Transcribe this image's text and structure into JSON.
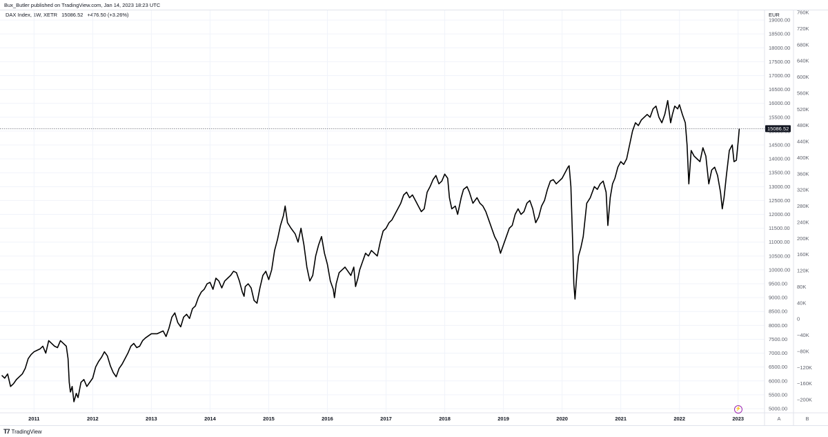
{
  "header": {
    "published": "Bux_Butler published on TradingView.com, Jan 14, 2023 18:23 UTC"
  },
  "legend": {
    "symbol": "DAX Index, 1W, XETR",
    "last": "15086.52",
    "change": "+476.50 (+3.26%)"
  },
  "footer": {
    "brand": "TradingView",
    "logo_icon": "tradingview-logo-icon",
    "scale_a": "A",
    "scale_b": "B",
    "alert_icon": "lightning-alert-icon"
  },
  "colors": {
    "line": "#000000",
    "grid": "#f0f3fa",
    "price_label_bg": "#131722",
    "price_label_text": "#ffffff",
    "alert": "#9c27b0",
    "axis_text": "#5d606b"
  },
  "chart_data": {
    "type": "line",
    "title": "",
    "currency": "EUR",
    "xlabel": "",
    "ylabel": "",
    "x_tick_labels": [
      "2011",
      "2012",
      "2013",
      "2014",
      "2015",
      "2016",
      "2017",
      "2018",
      "2019",
      "2020",
      "2021",
      "2022",
      "2023"
    ],
    "y_left_ticks": [
      "19000.00",
      "18500.00",
      "18000.00",
      "17500.00",
      "17000.00",
      "16500.00",
      "16000.00",
      "15500.00",
      "15000.00",
      "14500.00",
      "14000.00",
      "13500.00",
      "13000.00",
      "12500.00",
      "12000.00",
      "11500.00",
      "11000.00",
      "10500.00",
      "10000.00",
      "9500.00",
      "9000.00",
      "8500.00",
      "8000.00",
      "7500.00",
      "7000.00",
      "6500.00",
      "6000.00",
      "5500.00",
      "5000.00"
    ],
    "y_right_ticks": [
      "760K",
      "720K",
      "680K",
      "640K",
      "600K",
      "560K",
      "520K",
      "480K",
      "440K",
      "400K",
      "360K",
      "320K",
      "280K",
      "240K",
      "200K",
      "160K",
      "120K",
      "80K",
      "40K",
      "0",
      "−40K",
      "−80K",
      "−120K",
      "−160K",
      "−200K"
    ],
    "ylim": [
      4850,
      19350
    ],
    "xlim": [
      2010.42,
      2023.45
    ],
    "grid": true,
    "last_value": 15086.52,
    "last_value_label": "15086.52",
    "series": [
      {
        "values": [
          [
            2010.45,
            6200
          ],
          [
            2010.5,
            6100
          ],
          [
            2010.55,
            6250
          ],
          [
            2010.6,
            5800
          ],
          [
            2010.65,
            5900
          ],
          [
            2010.7,
            6050
          ],
          [
            2010.75,
            6150
          ],
          [
            2010.8,
            6250
          ],
          [
            2010.85,
            6450
          ],
          [
            2010.9,
            6800
          ],
          [
            2010.95,
            6950
          ],
          [
            2011.0,
            7050
          ],
          [
            2011.05,
            7100
          ],
          [
            2011.1,
            7150
          ],
          [
            2011.15,
            7250
          ],
          [
            2011.2,
            7000
          ],
          [
            2011.25,
            7450
          ],
          [
            2011.3,
            7350
          ],
          [
            2011.35,
            7250
          ],
          [
            2011.4,
            7200
          ],
          [
            2011.45,
            7450
          ],
          [
            2011.5,
            7350
          ],
          [
            2011.55,
            7250
          ],
          [
            2011.58,
            6800
          ],
          [
            2011.6,
            5950
          ],
          [
            2011.62,
            5600
          ],
          [
            2011.65,
            5800
          ],
          [
            2011.68,
            5250
          ],
          [
            2011.72,
            5550
          ],
          [
            2011.75,
            5400
          ],
          [
            2011.8,
            5950
          ],
          [
            2011.85,
            6050
          ],
          [
            2011.9,
            5800
          ],
          [
            2011.95,
            5950
          ],
          [
            2012.0,
            6100
          ],
          [
            2012.05,
            6500
          ],
          [
            2012.1,
            6700
          ],
          [
            2012.15,
            6850
          ],
          [
            2012.2,
            7050
          ],
          [
            2012.25,
            6900
          ],
          [
            2012.3,
            6550
          ],
          [
            2012.35,
            6300
          ],
          [
            2012.4,
            6150
          ],
          [
            2012.45,
            6450
          ],
          [
            2012.5,
            6600
          ],
          [
            2012.55,
            6800
          ],
          [
            2012.6,
            7000
          ],
          [
            2012.65,
            7250
          ],
          [
            2012.7,
            7350
          ],
          [
            2012.75,
            7200
          ],
          [
            2012.8,
            7250
          ],
          [
            2012.85,
            7450
          ],
          [
            2012.9,
            7550
          ],
          [
            2013.0,
            7700
          ],
          [
            2013.1,
            7700
          ],
          [
            2013.2,
            7800
          ],
          [
            2013.25,
            7600
          ],
          [
            2013.3,
            7900
          ],
          [
            2013.35,
            8300
          ],
          [
            2013.4,
            8450
          ],
          [
            2013.45,
            8100
          ],
          [
            2013.5,
            7950
          ],
          [
            2013.55,
            8300
          ],
          [
            2013.6,
            8400
          ],
          [
            2013.65,
            8250
          ],
          [
            2013.7,
            8600
          ],
          [
            2013.75,
            8700
          ],
          [
            2013.8,
            9000
          ],
          [
            2013.85,
            9200
          ],
          [
            2013.9,
            9300
          ],
          [
            2013.95,
            9500
          ],
          [
            2014.0,
            9550
          ],
          [
            2014.05,
            9300
          ],
          [
            2014.1,
            9700
          ],
          [
            2014.15,
            9600
          ],
          [
            2014.2,
            9350
          ],
          [
            2014.25,
            9600
          ],
          [
            2014.3,
            9700
          ],
          [
            2014.35,
            9800
          ],
          [
            2014.4,
            9950
          ],
          [
            2014.45,
            9900
          ],
          [
            2014.5,
            9600
          ],
          [
            2014.55,
            9200
          ],
          [
            2014.58,
            9050
          ],
          [
            2014.6,
            9400
          ],
          [
            2014.65,
            9500
          ],
          [
            2014.7,
            9350
          ],
          [
            2014.75,
            8900
          ],
          [
            2014.8,
            8800
          ],
          [
            2014.85,
            9350
          ],
          [
            2014.9,
            9800
          ],
          [
            2014.95,
            9950
          ],
          [
            2015.0,
            9650
          ],
          [
            2015.05,
            10000
          ],
          [
            2015.1,
            10700
          ],
          [
            2015.15,
            11100
          ],
          [
            2015.2,
            11600
          ],
          [
            2015.25,
            11950
          ],
          [
            2015.28,
            12300
          ],
          [
            2015.32,
            11700
          ],
          [
            2015.38,
            11500
          ],
          [
            2015.45,
            11300
          ],
          [
            2015.5,
            11000
          ],
          [
            2015.55,
            11500
          ],
          [
            2015.6,
            10900
          ],
          [
            2015.65,
            10100
          ],
          [
            2015.7,
            9600
          ],
          [
            2015.75,
            9800
          ],
          [
            2015.8,
            10500
          ],
          [
            2015.85,
            10900
          ],
          [
            2015.9,
            11200
          ],
          [
            2015.95,
            10600
          ],
          [
            2016.0,
            10200
          ],
          [
            2016.05,
            9600
          ],
          [
            2016.1,
            9300
          ],
          [
            2016.12,
            9000
          ],
          [
            2016.15,
            9500
          ],
          [
            2016.2,
            9900
          ],
          [
            2016.25,
            10000
          ],
          [
            2016.3,
            10100
          ],
          [
            2016.35,
            9950
          ],
          [
            2016.4,
            9800
          ],
          [
            2016.45,
            10100
          ],
          [
            2016.48,
            9400
          ],
          [
            2016.52,
            9700
          ],
          [
            2016.55,
            10000
          ],
          [
            2016.6,
            10300
          ],
          [
            2016.65,
            10600
          ],
          [
            2016.7,
            10500
          ],
          [
            2016.75,
            10700
          ],
          [
            2016.8,
            10600
          ],
          [
            2016.85,
            10500
          ],
          [
            2016.9,
            11000
          ],
          [
            2016.95,
            11400
          ],
          [
            2017.0,
            11500
          ],
          [
            2017.05,
            11700
          ],
          [
            2017.1,
            11800
          ],
          [
            2017.15,
            12000
          ],
          [
            2017.2,
            12200
          ],
          [
            2017.25,
            12400
          ],
          [
            2017.3,
            12700
          ],
          [
            2017.35,
            12800
          ],
          [
            2017.4,
            12600
          ],
          [
            2017.45,
            12700
          ],
          [
            2017.5,
            12500
          ],
          [
            2017.55,
            12300
          ],
          [
            2017.6,
            12100
          ],
          [
            2017.65,
            12200
          ],
          [
            2017.7,
            12800
          ],
          [
            2017.75,
            13000
          ],
          [
            2017.8,
            13250
          ],
          [
            2017.85,
            13400
          ],
          [
            2017.9,
            13100
          ],
          [
            2017.95,
            13200
          ],
          [
            2018.0,
            13450
          ],
          [
            2018.05,
            13300
          ],
          [
            2018.08,
            12600
          ],
          [
            2018.12,
            12200
          ],
          [
            2018.18,
            12300
          ],
          [
            2018.22,
            12000
          ],
          [
            2018.28,
            12600
          ],
          [
            2018.32,
            12900
          ],
          [
            2018.38,
            13000
          ],
          [
            2018.42,
            12800
          ],
          [
            2018.48,
            12400
          ],
          [
            2018.55,
            12600
          ],
          [
            2018.6,
            12400
          ],
          [
            2018.65,
            12300
          ],
          [
            2018.7,
            12100
          ],
          [
            2018.75,
            11800
          ],
          [
            2018.8,
            11500
          ],
          [
            2018.85,
            11200
          ],
          [
            2018.9,
            11000
          ],
          [
            2018.95,
            10600
          ],
          [
            2019.0,
            10900
          ],
          [
            2019.05,
            11200
          ],
          [
            2019.1,
            11500
          ],
          [
            2019.15,
            11600
          ],
          [
            2019.2,
            12000
          ],
          [
            2019.25,
            12200
          ],
          [
            2019.3,
            12000
          ],
          [
            2019.35,
            12100
          ],
          [
            2019.4,
            12400
          ],
          [
            2019.45,
            12500
          ],
          [
            2019.5,
            12200
          ],
          [
            2019.55,
            11700
          ],
          [
            2019.6,
            11900
          ],
          [
            2019.65,
            12300
          ],
          [
            2019.7,
            12500
          ],
          [
            2019.75,
            12900
          ],
          [
            2019.8,
            13200
          ],
          [
            2019.85,
            13250
          ],
          [
            2019.9,
            13100
          ],
          [
            2019.95,
            13200
          ],
          [
            2020.0,
            13300
          ],
          [
            2020.05,
            13500
          ],
          [
            2020.1,
            13700
          ],
          [
            2020.12,
            13750
          ],
          [
            2020.15,
            13000
          ],
          [
            2020.18,
            11000
          ],
          [
            2020.2,
            9500
          ],
          [
            2020.22,
            8950
          ],
          [
            2020.25,
            9800
          ],
          [
            2020.28,
            10500
          ],
          [
            2020.32,
            10800
          ],
          [
            2020.36,
            11200
          ],
          [
            2020.42,
            12400
          ],
          [
            2020.48,
            12600
          ],
          [
            2020.55,
            13000
          ],
          [
            2020.6,
            12900
          ],
          [
            2020.65,
            13100
          ],
          [
            2020.7,
            13200
          ],
          [
            2020.75,
            12800
          ],
          [
            2020.78,
            11600
          ],
          [
            2020.82,
            12600
          ],
          [
            2020.86,
            13100
          ],
          [
            2020.9,
            13300
          ],
          [
            2020.95,
            13700
          ],
          [
            2021.0,
            13900
          ],
          [
            2021.05,
            13800
          ],
          [
            2021.1,
            14000
          ],
          [
            2021.15,
            14500
          ],
          [
            2021.2,
            15000
          ],
          [
            2021.25,
            15300
          ],
          [
            2021.3,
            15200
          ],
          [
            2021.35,
            15400
          ],
          [
            2021.4,
            15500
          ],
          [
            2021.45,
            15600
          ],
          [
            2021.5,
            15500
          ],
          [
            2021.55,
            15800
          ],
          [
            2021.6,
            15900
          ],
          [
            2021.65,
            15500
          ],
          [
            2021.7,
            15300
          ],
          [
            2021.75,
            15600
          ],
          [
            2021.8,
            16100
          ],
          [
            2021.85,
            15300
          ],
          [
            2021.88,
            15600
          ],
          [
            2021.92,
            15900
          ],
          [
            2021.97,
            15800
          ],
          [
            2022.0,
            15950
          ],
          [
            2022.05,
            15600
          ],
          [
            2022.1,
            15300
          ],
          [
            2022.13,
            14500
          ],
          [
            2022.16,
            13100
          ],
          [
            2022.2,
            14300
          ],
          [
            2022.25,
            14100
          ],
          [
            2022.3,
            14000
          ],
          [
            2022.35,
            13900
          ],
          [
            2022.4,
            14400
          ],
          [
            2022.45,
            14100
          ],
          [
            2022.5,
            13100
          ],
          [
            2022.55,
            13600
          ],
          [
            2022.6,
            13700
          ],
          [
            2022.65,
            13400
          ],
          [
            2022.7,
            12800
          ],
          [
            2022.73,
            12200
          ],
          [
            2022.76,
            12600
          ],
          [
            2022.8,
            13400
          ],
          [
            2022.85,
            14300
          ],
          [
            2022.9,
            14500
          ],
          [
            2022.93,
            13900
          ],
          [
            2022.97,
            13950
          ],
          [
            2023.0,
            14600
          ],
          [
            2023.02,
            15086.52
          ]
        ]
      }
    ]
  }
}
